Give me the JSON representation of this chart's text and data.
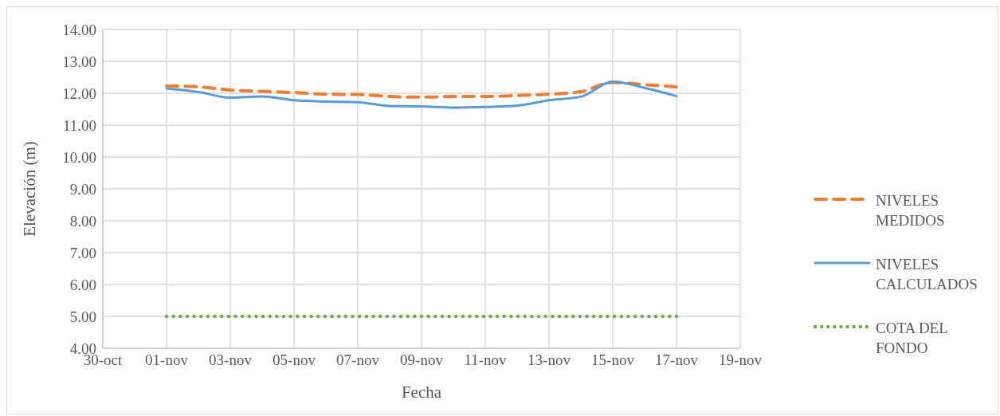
{
  "chart_data": {
    "type": "line",
    "xlabel": "Fecha",
    "ylabel": "Elevación (m)",
    "x": [
      "--11-01",
      "--11-02",
      "--11-03",
      "--11-04",
      "--11-05",
      "--11-06",
      "--11-07",
      "--11-08",
      "--11-09",
      "--11-10",
      "--11-11",
      "--11-12",
      "--11-13",
      "--11-14",
      "--11-15",
      "--11-16",
      "--11-17"
    ],
    "series": [
      {
        "name": "NIVELES MEDIDOS",
        "color": "#ed7d31",
        "line_style": "dashed",
        "values": [
          12.23,
          12.2,
          12.1,
          12.06,
          12.02,
          11.97,
          11.96,
          11.9,
          11.88,
          11.9,
          11.9,
          11.93,
          11.97,
          12.05,
          12.34,
          12.27,
          12.2
        ]
      },
      {
        "name": "NIVELES CALCULADOS",
        "color": "#5b9bd5",
        "line_style": "solid",
        "values": [
          12.15,
          12.04,
          11.86,
          11.9,
          11.78,
          11.74,
          11.72,
          11.6,
          11.59,
          11.55,
          11.57,
          11.61,
          11.78,
          11.89,
          12.36,
          12.17,
          11.91
        ]
      },
      {
        "name": "COTA DEL FONDO",
        "color": "#70ad47",
        "line_style": "dotted",
        "values": [
          5,
          5,
          5,
          5,
          5,
          5,
          5,
          5,
          5,
          5,
          5,
          5,
          5,
          5,
          5,
          5,
          5
        ]
      }
    ],
    "xlim": [
      "--10-30",
      "--11-19"
    ],
    "xticks": [
      {
        "value": "--10-30",
        "label": "30-oct"
      },
      {
        "value": "--11-01",
        "label": "01-nov"
      },
      {
        "value": "--11-03",
        "label": "03-nov"
      },
      {
        "value": "--11-05",
        "label": "05-nov"
      },
      {
        "value": "--11-07",
        "label": "07-nov"
      },
      {
        "value": "--11-09",
        "label": "09-nov"
      },
      {
        "value": "--11-11",
        "label": "11-nov"
      },
      {
        "value": "--11-13",
        "label": "13-nov"
      },
      {
        "value": "--11-15",
        "label": "15-nov"
      },
      {
        "value": "--11-17",
        "label": "17-nov"
      },
      {
        "value": "--11-19",
        "label": "19-nov"
      }
    ],
    "ylim": [
      4,
      14
    ],
    "yticks": [
      {
        "value": 4,
        "label": "4.00"
      },
      {
        "value": 5,
        "label": "5.00"
      },
      {
        "value": 6,
        "label": "6.00"
      },
      {
        "value": 7,
        "label": "7.00"
      },
      {
        "value": 8,
        "label": "8.00"
      },
      {
        "value": 9,
        "label": "9.00"
      },
      {
        "value": 10,
        "label": "10.00"
      },
      {
        "value": 11,
        "label": "11.00"
      },
      {
        "value": 12,
        "label": "12.00"
      },
      {
        "value": 13,
        "label": "13.00"
      },
      {
        "value": 14,
        "label": "14.00"
      }
    ],
    "grid": true,
    "legend": "right",
    "marker": "none"
  }
}
